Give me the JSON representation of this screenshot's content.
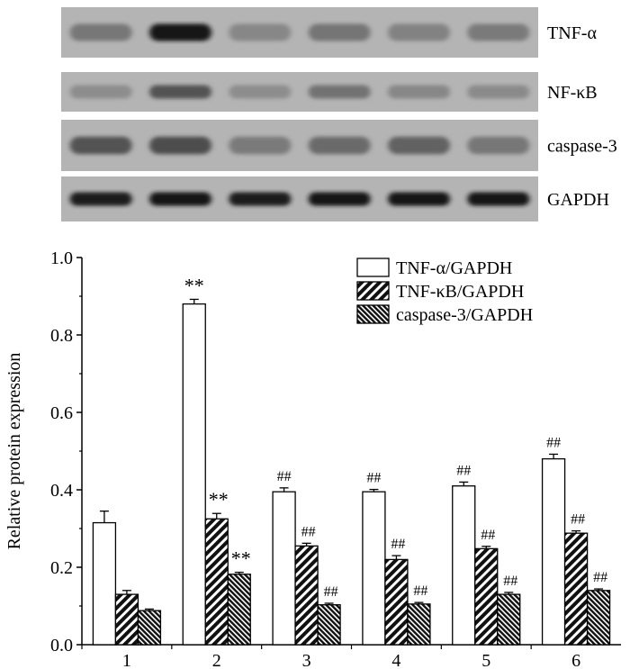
{
  "blot": {
    "lanes": [
      "1",
      "2",
      "3",
      "4",
      "5",
      "6"
    ],
    "rows": [
      {
        "label": "TNF-α",
        "intensity": [
          0.32,
          0.95,
          0.22,
          0.33,
          0.25,
          0.3
        ]
      },
      {
        "label": "NF-κB",
        "intensity": [
          0.18,
          0.55,
          0.18,
          0.35,
          0.22,
          0.2
        ]
      },
      {
        "label": "caspase-3",
        "intensity": [
          0.55,
          0.58,
          0.3,
          0.4,
          0.45,
          0.32
        ]
      },
      {
        "label": "GAPDH",
        "intensity": [
          0.9,
          0.92,
          0.9,
          0.92,
          0.92,
          0.92
        ]
      }
    ]
  },
  "chart_data": {
    "type": "bar",
    "categories": [
      "1",
      "2",
      "3",
      "4",
      "5",
      "6"
    ],
    "ylabel": "Relative protein expression",
    "ylim": [
      0.0,
      1.0
    ],
    "yticks": [
      "0.0",
      "0.2",
      "0.4",
      "0.6",
      "0.8",
      "1.0"
    ],
    "legend_position": "top-right",
    "series": [
      {
        "name": "TNF-α/GAPDH",
        "pattern": "white",
        "values": [
          0.315,
          0.88,
          0.395,
          0.395,
          0.41,
          0.48
        ],
        "errors": [
          0.03,
          0.012,
          0.01,
          0.006,
          0.01,
          0.012
        ],
        "annotations": [
          "",
          "**",
          "##",
          "##",
          "##",
          "##"
        ]
      },
      {
        "name": "TNF-κB/GAPDH",
        "pattern": "hatch",
        "values": [
          0.13,
          0.325,
          0.255,
          0.22,
          0.248,
          0.288
        ],
        "errors": [
          0.01,
          0.014,
          0.007,
          0.01,
          0.006,
          0.006
        ],
        "annotations": [
          "",
          "**",
          "##",
          "##",
          "##",
          "##"
        ]
      },
      {
        "name": "caspase-3/GAPDH",
        "pattern": "hatch-dense",
        "values": [
          0.088,
          0.182,
          0.103,
          0.105,
          0.13,
          0.14
        ],
        "errors": [
          0.004,
          0.005,
          0.004,
          0.004,
          0.005,
          0.004
        ],
        "annotations": [
          "",
          "**",
          "##",
          "##",
          "##",
          "##"
        ]
      }
    ]
  }
}
